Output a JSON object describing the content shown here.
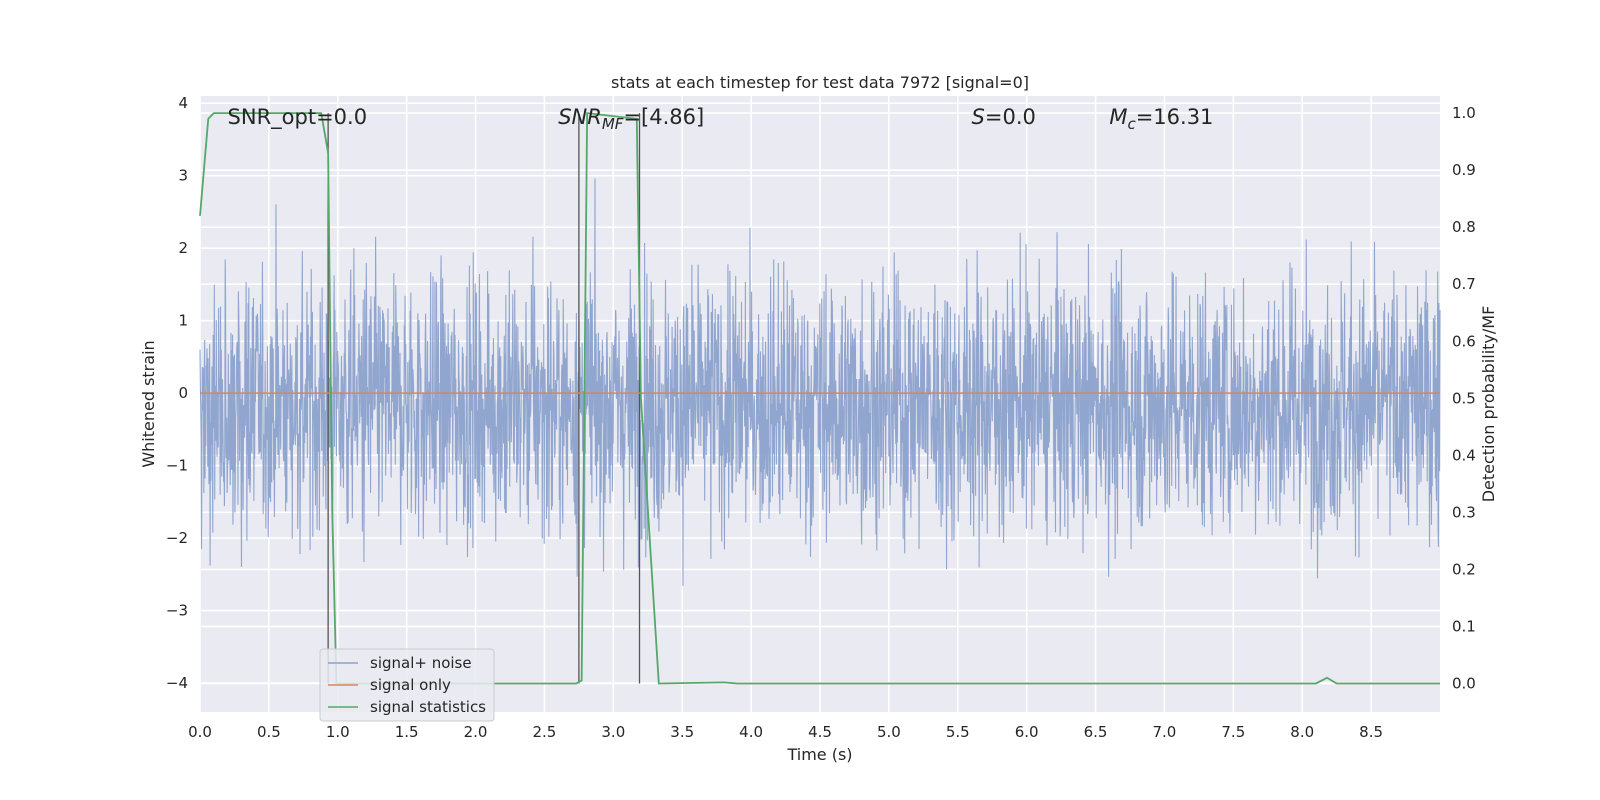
{
  "chart_data": {
    "type": "line",
    "title": "stats at each timestep for test data 7972 [signal=0]",
    "xlabel": "Time (s)",
    "ylabel": "Whitened strain",
    "y2label": "Detection probability/MF",
    "xlim": [
      0.0,
      9.0
    ],
    "ylim": [
      -4.4,
      4.1
    ],
    "y2lim": [
      -0.05,
      1.03
    ],
    "xticks": [
      "0.0",
      "0.5",
      "1.0",
      "1.5",
      "2.0",
      "2.5",
      "3.0",
      "3.5",
      "4.0",
      "4.5",
      "5.0",
      "5.5",
      "6.0",
      "6.5",
      "7.0",
      "7.5",
      "8.0",
      "8.5"
    ],
    "xtick_values": [
      0.0,
      0.5,
      1.0,
      1.5,
      2.0,
      2.5,
      3.0,
      3.5,
      4.0,
      4.5,
      5.0,
      5.5,
      6.0,
      6.5,
      7.0,
      7.5,
      8.0,
      8.5
    ],
    "yticks": [
      "−4",
      "−3",
      "−2",
      "−1",
      "0",
      "1",
      "2",
      "3",
      "4"
    ],
    "ytick_values": [
      -4,
      -3,
      -2,
      -1,
      0,
      1,
      2,
      3,
      4
    ],
    "y2ticks": [
      "0.0",
      "0.1",
      "0.2",
      "0.3",
      "0.4",
      "0.5",
      "0.6",
      "0.7",
      "0.8",
      "0.9",
      "1.0"
    ],
    "y2tick_values": [
      0.0,
      0.1,
      0.2,
      0.3,
      0.4,
      0.5,
      0.6,
      0.7,
      0.8,
      0.9,
      1.0
    ],
    "grid": true,
    "legend_position": "lower-left",
    "series": [
      {
        "name": "signal+ noise",
        "axis": "left",
        "color": "#8ca2cc",
        "note_shape": "dense noise",
        "band": {
          "typical_min": -1.7,
          "typical_max": 1.4,
          "peak_min": -4.0,
          "peak_max": 3.75
        }
      },
      {
        "name": "signal only",
        "axis": "left",
        "color": "#dd8452",
        "x": [
          0.0,
          9.0
        ],
        "y": [
          0.0,
          0.0
        ]
      },
      {
        "name": "signal statistics",
        "axis": "right",
        "color": "#55a868",
        "x": [
          0.0,
          0.06,
          0.1,
          0.88,
          0.93,
          0.96,
          0.99,
          2.73,
          2.77,
          2.81,
          3.17,
          3.2,
          3.33,
          3.8,
          3.9,
          8.1,
          8.18,
          8.25,
          9.0
        ],
        "y": [
          0.82,
          0.99,
          1.0,
          1.0,
          0.93,
          0.3,
          0.0,
          0.0,
          0.005,
          1.0,
          0.99,
          0.5,
          0.0,
          0.002,
          0.0,
          0.0,
          0.01,
          0.0,
          0.0
        ]
      }
    ],
    "vlines": [
      0.93,
      2.75,
      3.19
    ],
    "annotations": [
      {
        "text": "SNR_opt=0.0",
        "x": 0.2
      },
      {
        "text": "SNR",
        "sub": "MF",
        "suffix": "=[4.86]",
        "x": 2.6,
        "italic": true
      },
      {
        "text": "S",
        "sub": "",
        "suffix": "=0.0",
        "x": 5.6,
        "italic": true
      },
      {
        "text": "M",
        "sub": "c",
        "suffix": "=16.31",
        "x": 6.6,
        "italic": true
      }
    ]
  }
}
